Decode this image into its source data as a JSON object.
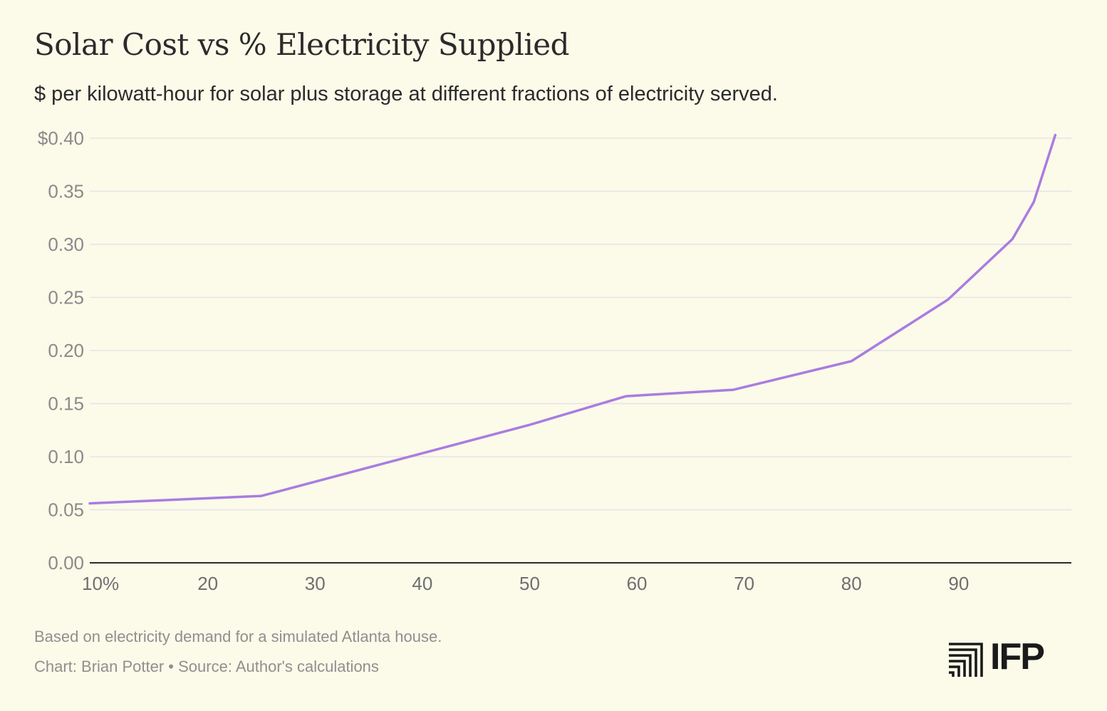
{
  "chart_data": {
    "type": "line",
    "title": "Solar Cost vs % Electricity Supplied",
    "subtitle": "$ per kilowatt-hour for solar plus storage at different fractions of electricity served.",
    "xlabel": "",
    "ylabel": "",
    "x_ticks": [
      10,
      20,
      30,
      40,
      50,
      60,
      70,
      80,
      90
    ],
    "x_tick_labels": [
      "10%",
      "20",
      "30",
      "40",
      "50",
      "60",
      "70",
      "80",
      "90"
    ],
    "y_ticks": [
      0,
      0.05,
      0.1,
      0.15,
      0.2,
      0.25,
      0.3,
      0.35,
      0.4
    ],
    "y_tick_labels": [
      "0.00",
      "0.05",
      "0.10",
      "0.15",
      "0.20",
      "0.25",
      "0.30",
      "0.35",
      "$0.40"
    ],
    "xlim": [
      9,
      100.5
    ],
    "ylim": [
      0,
      0.4
    ],
    "grid": "horizontal",
    "series": [
      {
        "color": "#a87de0",
        "points": [
          [
            9,
            0.056
          ],
          [
            25,
            0.063
          ],
          [
            50,
            0.13
          ],
          [
            59,
            0.157
          ],
          [
            69,
            0.163
          ],
          [
            80,
            0.19
          ],
          [
            89,
            0.248
          ],
          [
            95,
            0.305
          ],
          [
            97,
            0.34
          ],
          [
            99,
            0.403
          ]
        ]
      }
    ]
  },
  "footer": {
    "note": "Based on electricity demand for a simulated Atlanta house.",
    "credit": "Chart: Brian Potter • Source: Author's calculations"
  },
  "logo": {
    "text": "IFP",
    "icon": "ifp-logo-icon"
  },
  "colors": {
    "background": "#fcfae9",
    "line": "#a87de0",
    "grid": "#e6e3e6",
    "axis": "#2b2b2b"
  }
}
